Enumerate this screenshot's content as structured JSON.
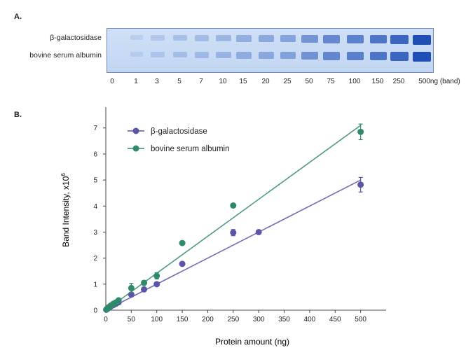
{
  "panel_a": {
    "label": "A.",
    "row_labels": [
      "β-galactosidase",
      "bovine serum albumin"
    ],
    "lanes": [
      "0",
      "1",
      "3",
      "5",
      "7",
      "10",
      "15",
      "20",
      "25",
      "50",
      "75",
      "100",
      "150",
      "250",
      "500ng (band)"
    ],
    "lane_amounts": [
      0,
      1,
      3,
      5,
      7,
      10,
      15,
      20,
      25,
      50,
      75,
      100,
      150,
      250,
      500
    ],
    "band_color": "#1f4fb5"
  },
  "panel_b": {
    "label": "B."
  },
  "chart_data": {
    "type": "scatter",
    "title": "",
    "xlabel": "Protein amount (ng)",
    "ylabel": "Band Intensity, x10",
    "ylabel_exponent": "6",
    "xlim": [
      0,
      550
    ],
    "ylim": [
      0,
      7.8
    ],
    "xticks": [
      0,
      50,
      100,
      150,
      200,
      250,
      300,
      350,
      400,
      450,
      500
    ],
    "yticks": [
      0,
      1,
      2,
      3,
      4,
      5,
      6,
      7
    ],
    "grid": false,
    "legend_position": "top-left",
    "series": [
      {
        "name": "β-galactosidase",
        "color": "#5b55a8",
        "x": [
          1,
          3,
          5,
          7,
          10,
          15,
          20,
          25,
          50,
          75,
          100,
          150,
          250,
          300,
          500
        ],
        "y": [
          0.02,
          0.05,
          0.08,
          0.1,
          0.15,
          0.2,
          0.25,
          0.3,
          0.6,
          0.8,
          1.0,
          1.78,
          2.98,
          3.0,
          4.82
        ],
        "error": [
          0,
          0,
          0,
          0,
          0,
          0,
          0,
          0,
          0.08,
          0.05,
          0.06,
          0.05,
          0.12,
          0,
          0.28
        ],
        "fit": [
          [
            0,
            0.0
          ],
          [
            500,
            5.0
          ]
        ]
      },
      {
        "name": "bovine serum albumin",
        "color": "#2e8a6a",
        "x": [
          1,
          3,
          5,
          7,
          10,
          15,
          20,
          25,
          50,
          75,
          100,
          150,
          250,
          500
        ],
        "y": [
          0.03,
          0.06,
          0.1,
          0.13,
          0.18,
          0.25,
          0.3,
          0.38,
          0.85,
          1.05,
          1.32,
          2.58,
          4.02,
          6.85
        ],
        "error": [
          0,
          0,
          0,
          0,
          0,
          0,
          0,
          0,
          0.18,
          0.08,
          0.12,
          0.06,
          0.06,
          0.3
        ],
        "fit": [
          [
            0,
            0.0
          ],
          [
            500,
            7.1
          ]
        ]
      }
    ]
  }
}
